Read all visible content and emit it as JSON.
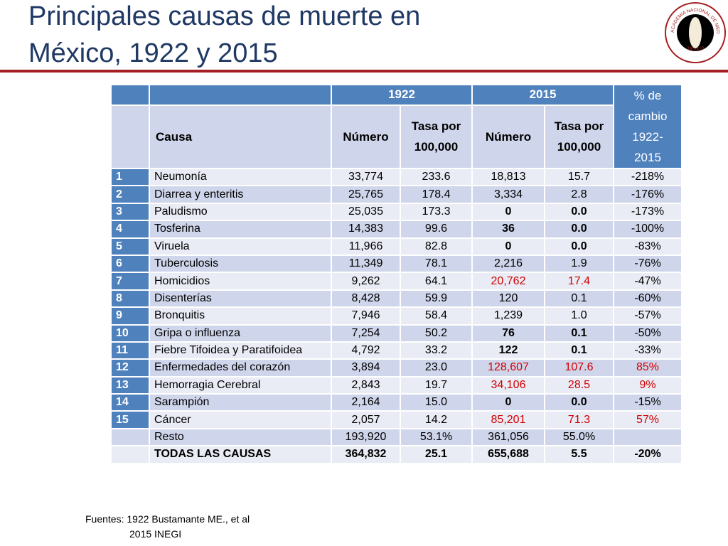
{
  "title": {
    "line1": "Principales causas de muerte en",
    "line2": "México, 1922 y 2015"
  },
  "logo": {
    "top": "ACADEMIA NACIONAL DE MEDICINA",
    "bottom": "MÉXICO"
  },
  "table": {
    "header": {
      "row1": [
        "1922",
        "2015",
        "% de cambio 1922-2015"
      ],
      "row2": [
        "Causa",
        "Número",
        "Tasa por 100,000",
        "Número",
        "Tasa por 100,000"
      ]
    },
    "rows": [
      [
        "1",
        "Neumonía",
        "33,774",
        "233.6",
        "18,813",
        "15.7",
        "-218%"
      ],
      [
        "2",
        "Diarrea y enteritis",
        "25,765",
        "178.4",
        "3,334",
        "2.8",
        "-176%"
      ],
      [
        "3",
        "Paludismo",
        "25,035",
        "173.3",
        "0",
        "0.0",
        "-173%"
      ],
      [
        "4",
        "Tosferina",
        "14,383",
        "99.6",
        "36",
        "0.0",
        "-100%"
      ],
      [
        "5",
        "Viruela",
        "11,966",
        "82.8",
        "0",
        "0.0",
        "-83%"
      ],
      [
        "6",
        "Tuberculosis",
        "11,349",
        "78.1",
        "2,216",
        "1.9",
        "-76%"
      ],
      [
        "7",
        "Homicidios",
        "9,262",
        "64.1",
        "20,762",
        "17.4",
        "-47%"
      ],
      [
        "8",
        "Disenterías",
        "8,428",
        "59.9",
        "120",
        "0.1",
        "-60%"
      ],
      [
        "9",
        "Bronquitis",
        "7,946",
        "58.4",
        "1,239",
        "1.0",
        "-57%"
      ],
      [
        "10",
        "Gripa o influenza",
        "7,254",
        "50.2",
        "76",
        "0.1",
        "-50%"
      ],
      [
        "11",
        "Fiebre Tifoidea y Paratifoidea",
        "4,792",
        "33.2",
        "122",
        "0.1",
        "-33%"
      ],
      [
        "12",
        "Enfermedades del corazón",
        "3,894",
        "23.0",
        "128,607",
        "107.6",
        "85%"
      ],
      [
        "13",
        "Hemorragia Cerebral",
        "2,843",
        "19.7",
        "34,106",
        "28.5",
        "9%"
      ],
      [
        "14",
        "Sarampión",
        "2,164",
        "15.0",
        "0",
        "0.0",
        "-15%"
      ],
      [
        "15",
        "Cáncer",
        "2,057",
        "14.2",
        "85,201",
        "71.3",
        "57%"
      ],
      [
        null,
        "Resto",
        "193,920",
        "53.1%",
        "361,056",
        "55.0%",
        null
      ],
      [
        null,
        "TODAS LAS CAUSAS",
        "364,832",
        "25.1",
        "655,688",
        "5.5",
        "-20%"
      ]
    ]
  },
  "footnote": {
    "line1": "Fuentes: 1922 Bustamante ME., et al",
    "line2": "2015 INEGI"
  }
}
